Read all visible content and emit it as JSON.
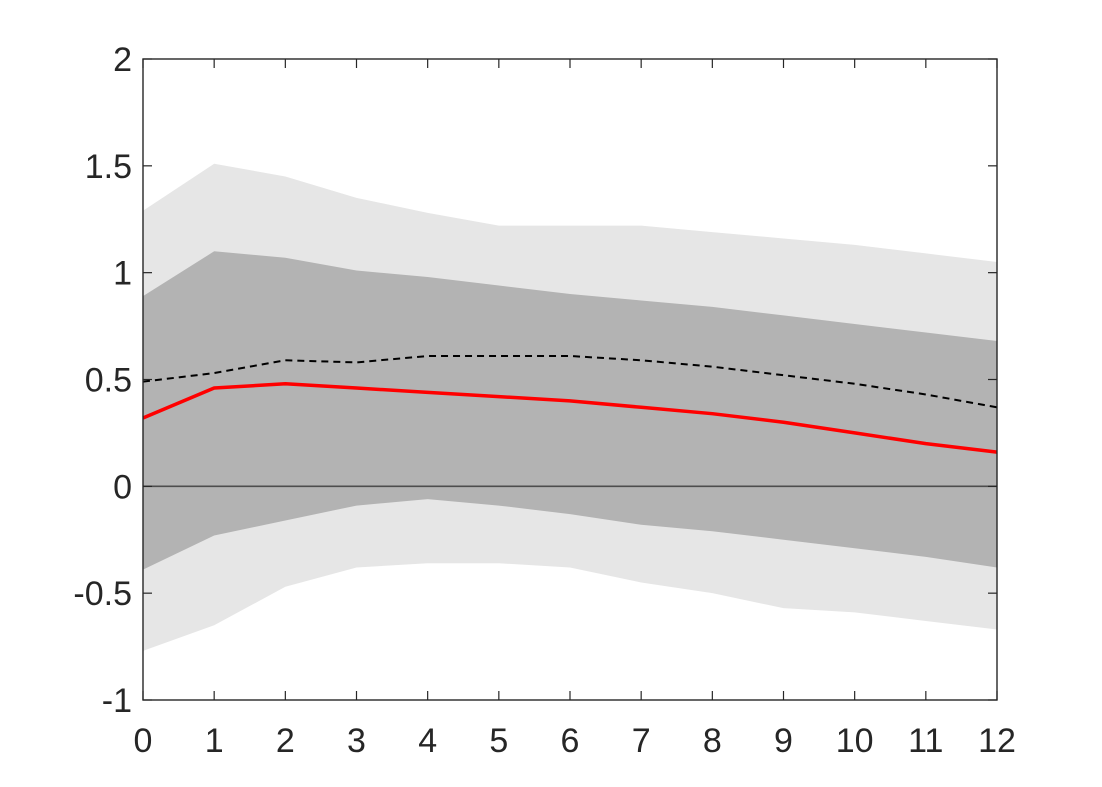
{
  "chart_data": {
    "type": "line",
    "title": "",
    "xlabel": "",
    "ylabel": "",
    "xlim": [
      0,
      12
    ],
    "ylim": [
      -1,
      2
    ],
    "x_ticks": [
      "0",
      "1",
      "2",
      "3",
      "4",
      "5",
      "6",
      "7",
      "8",
      "9",
      "10",
      "11",
      "12"
    ],
    "y_ticks": [
      "-1",
      "-0.5",
      "0",
      "0.5",
      "1",
      "1.5",
      "2"
    ],
    "x": [
      0,
      1,
      2,
      3,
      4,
      5,
      6,
      7,
      8,
      9,
      10,
      11,
      12
    ],
    "bands": [
      {
        "lower": [
          -0.77,
          -0.65,
          -0.47,
          -0.38,
          -0.36,
          -0.36,
          -0.38,
          -0.45,
          -0.5,
          -0.57,
          -0.59,
          -0.63,
          -0.67
        ],
        "upper": [
          1.29,
          1.51,
          1.45,
          1.35,
          1.28,
          1.22,
          1.22,
          1.22,
          1.19,
          1.16,
          1.13,
          1.09,
          1.05
        ],
        "color": "#e6e6e6"
      },
      {
        "lower": [
          -0.39,
          -0.23,
          -0.16,
          -0.09,
          -0.06,
          -0.09,
          -0.13,
          -0.18,
          -0.21,
          -0.25,
          -0.29,
          -0.33,
          -0.38
        ],
        "upper": [
          0.89,
          1.1,
          1.07,
          1.01,
          0.98,
          0.94,
          0.9,
          0.87,
          0.84,
          0.8,
          0.76,
          0.72,
          0.68
        ],
        "color": "#b3b3b3"
      }
    ],
    "series": [
      {
        "style": "dashed",
        "color": "#000000",
        "values": [
          0.49,
          0.53,
          0.59,
          0.58,
          0.61,
          0.61,
          0.61,
          0.59,
          0.56,
          0.52,
          0.48,
          0.43,
          0.37
        ]
      },
      {
        "style": "solid",
        "color": "#ff0000",
        "values": [
          0.32,
          0.46,
          0.48,
          0.46,
          0.44,
          0.42,
          0.4,
          0.37,
          0.34,
          0.3,
          0.25,
          0.2,
          0.16
        ]
      }
    ],
    "zero_line": 0,
    "grid": false,
    "legend": "none"
  }
}
